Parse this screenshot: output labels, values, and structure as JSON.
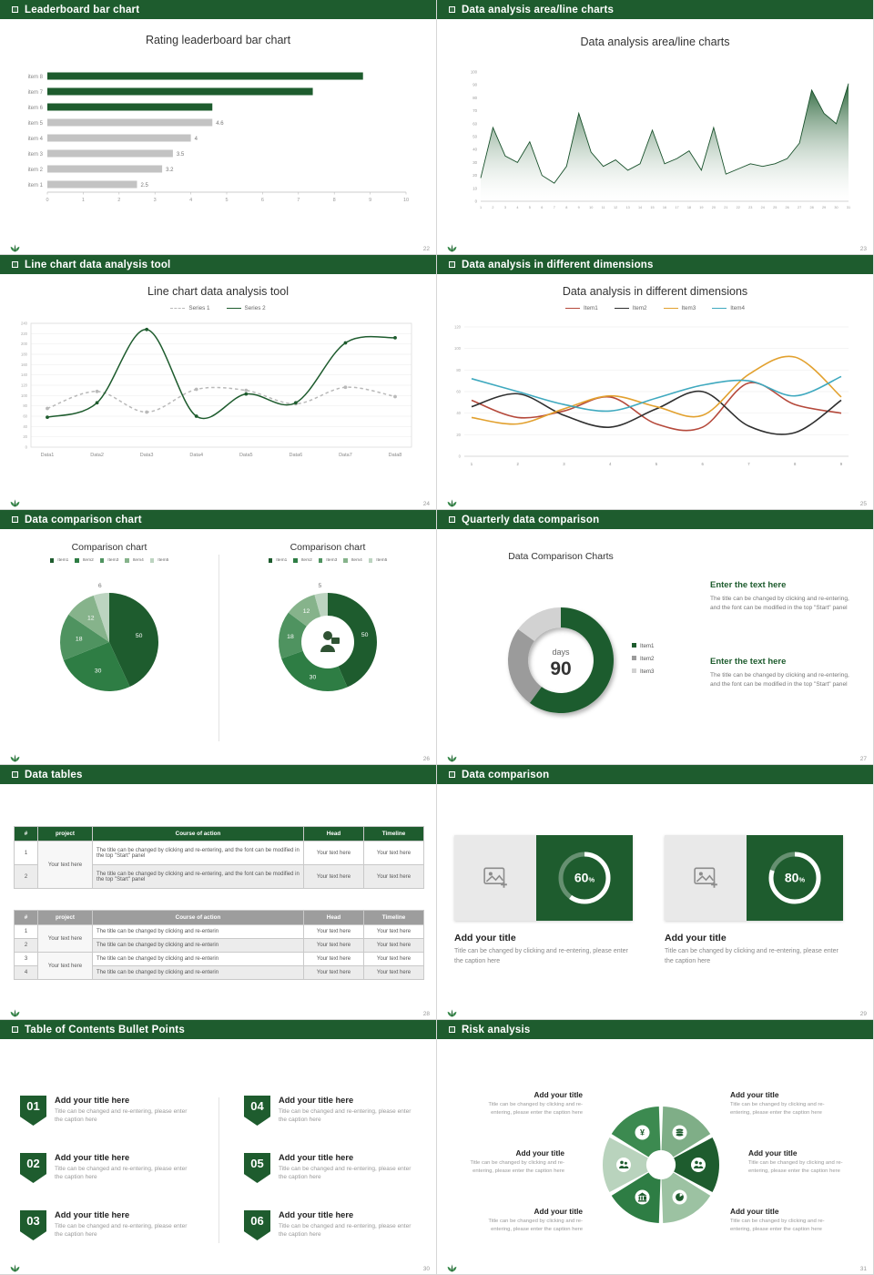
{
  "theme": {
    "green_dark": "#1e5c2e",
    "green_mid": "#2e7d44",
    "gray_bar": "#c3c3c3",
    "header_icon": "square-bullet-icon",
    "footer_icon": "wheat-logo-icon"
  },
  "slides": [
    {
      "header": "Leaderboard bar chart",
      "page": "22",
      "chart_title": "Rating leaderboard bar chart",
      "chart_data": {
        "type": "bar",
        "orientation": "horizontal",
        "categories": [
          "item 8",
          "item 7",
          "item 6",
          "item 5",
          "item 4",
          "item 3",
          "item 2",
          "item 1"
        ],
        "values": [
          8.8,
          7.4,
          4.6,
          4.6,
          4,
          3.5,
          3.2,
          2.5
        ],
        "colors": [
          "#1e5c2e",
          "#1e5c2e",
          "#1e5c2e",
          "#c3c3c3",
          "#c3c3c3",
          "#c3c3c3",
          "#c3c3c3",
          "#c3c3c3"
        ],
        "value_labels": [
          "",
          "",
          "",
          "4.6",
          "4",
          "3.5",
          "3.2",
          "2.5"
        ],
        "xlim": [
          0,
          10
        ],
        "xticks": [
          0,
          1,
          2,
          3,
          4,
          5,
          6,
          7,
          8,
          9,
          10
        ]
      }
    },
    {
      "header": "Data analysis area/line charts",
      "page": "23",
      "chart_title": "Data analysis area/line charts",
      "chart_data": {
        "type": "area",
        "x_labels": [
          "1",
          "2",
          "3",
          "4",
          "5",
          "6",
          "7",
          "8",
          "9",
          "10",
          "11",
          "12",
          "13",
          "14",
          "15",
          "16",
          "17",
          "18",
          "19",
          "20",
          "21",
          "22",
          "23",
          "24",
          "25",
          "26",
          "27",
          "28",
          "29",
          "30",
          "31"
        ],
        "values": [
          18,
          57,
          35,
          30,
          46,
          20,
          14,
          27,
          68,
          38,
          27,
          32,
          24,
          29,
          55,
          29,
          33,
          39,
          24,
          57,
          21,
          25,
          29,
          27,
          29,
          33,
          45,
          86,
          68,
          60,
          91
        ],
        "ylim": [
          0,
          100
        ],
        "yticks": [
          0,
          10,
          20,
          30,
          40,
          50,
          60,
          70,
          80,
          90,
          100
        ],
        "color": "#1e5c2e"
      }
    },
    {
      "header": "Line chart data analysis tool",
      "page": "24",
      "chart_title": "Line chart data analysis tool",
      "chart_data": {
        "type": "line",
        "categories": [
          "Data1",
          "Data2",
          "Data3",
          "Data4",
          "Data5",
          "Data6",
          "Data7",
          "Data8"
        ],
        "series": [
          {
            "name": "Series 1",
            "color": "#b9b9b9",
            "dashed": true,
            "values": [
              75,
              108,
              68,
              112,
              110,
              84,
              116,
              98
            ]
          },
          {
            "name": "Series 2",
            "color": "#1e5c2e",
            "dashed": false,
            "values": [
              58,
              86,
              228,
              60,
              103,
              86,
              202,
              212
            ]
          }
        ],
        "ylim": [
          0,
          240
        ],
        "ytick_step": 20
      }
    },
    {
      "header": "Data analysis in different dimensions",
      "page": "25",
      "chart_title": "Data analysis in different dimensions",
      "chart_data": {
        "type": "line",
        "x_labels": [
          "1",
          "2",
          "3",
          "4",
          "5",
          "6",
          "7",
          "8",
          "9"
        ],
        "series": [
          {
            "name": "Item1",
            "color": "#b5493b",
            "dashed": false,
            "values": [
              52,
              36,
              42,
              55,
              30,
              27,
              68,
              48,
              40
            ]
          },
          {
            "name": "Item2",
            "color": "#2f2f2f",
            "dashed": false,
            "values": [
              46,
              58,
              38,
              27,
              44,
              60,
              28,
              22,
              52
            ]
          },
          {
            "name": "Item3",
            "color": "#e2a12f",
            "dashed": false,
            "values": [
              36,
              30,
              44,
              56,
              46,
              38,
              76,
              92,
              55
            ]
          },
          {
            "name": "Item4",
            "color": "#3fa9bf",
            "dashed": false,
            "values": [
              72,
              60,
              48,
              42,
              54,
              66,
              70,
              56,
              74
            ]
          }
        ],
        "ylim": [
          0,
          120
        ],
        "ytick_step": 20
      }
    },
    {
      "header": "Data comparison chart",
      "page": "26",
      "left": {
        "title": "Comparison chart",
        "legend": [
          "Item1",
          "Item2",
          "Item3",
          "Item4",
          "Item5"
        ],
        "chart_data": {
          "type": "pie",
          "values": [
            50,
            30,
            18,
            12,
            6
          ],
          "labels": [
            "50",
            "30",
            "18",
            "12",
            "6"
          ],
          "colors": [
            "#1e5c2e",
            "#2e7d44",
            "#4f9360",
            "#86b38b",
            "#bcd4c0"
          ]
        }
      },
      "right": {
        "title": "Comparison chart",
        "legend": [
          "Item1",
          "Item2",
          "Item3",
          "Item4",
          "Item5"
        ],
        "center_icon": "presenter-icon",
        "chart_data": {
          "type": "donut",
          "values": [
            50,
            30,
            18,
            12,
            5
          ],
          "labels": [
            "50",
            "30",
            "18",
            "12",
            "5"
          ],
          "colors": [
            "#1e5c2e",
            "#2e7d44",
            "#4f9360",
            "#86b38b",
            "#bcd4c0"
          ]
        }
      }
    },
    {
      "header": "Quarterly data comparison",
      "page": "27",
      "chart_title": "Data Comparison Charts",
      "chart_data": {
        "type": "donut",
        "values": [
          60,
          25,
          15
        ],
        "colors": [
          "#1e5c2e",
          "#9b9b9b",
          "#d2d2d2"
        ],
        "legend": [
          "Item1",
          "Item2",
          "Item3"
        ],
        "center_label": "days",
        "center_value": "90"
      },
      "blocks": [
        {
          "title": "Enter the text here",
          "body": "The title can be changed by clicking and re-entering, and the font can be modified in the top \"Start\" panel"
        },
        {
          "title": "Enter the text here",
          "body": "The title can be changed by clicking and re-entering, and the font can be modified in the top \"Start\" panel"
        }
      ]
    },
    {
      "header": "Data tables",
      "page": "28",
      "table1": {
        "columns": [
          "#",
          "project",
          "Course of action",
          "Head",
          "Timeline"
        ],
        "project_label": "Your text here",
        "rows": [
          {
            "num": "1",
            "course": "The title can be changed by clicking and re-entering, and the font can be modified in the top \"Start\" panel",
            "head": "Your text here",
            "timeline": "Your text here"
          },
          {
            "num": "2",
            "course": "The title can be changed by clicking and re-entering, and the font can be modified in the top \"Start\" panel",
            "head": "Your text here",
            "timeline": "Your text here"
          }
        ]
      },
      "table2": {
        "columns": [
          "#",
          "project",
          "Course of action",
          "Head",
          "Timeline"
        ],
        "project_label_1": "Your text here",
        "project_label_2": "Your text here",
        "rows": [
          {
            "num": "1",
            "course": "The title can be changed by clicking and re-enterin",
            "head": "Your text here",
            "timeline": "Your text here"
          },
          {
            "num": "2",
            "course": "The title can be changed by clicking and re-enterin",
            "head": "Your text here",
            "timeline": "Your text here"
          },
          {
            "num": "3",
            "course": "The title can be changed by clicking and re-enterin",
            "head": "Your text here",
            "timeline": "Your text here"
          },
          {
            "num": "4",
            "course": "The title can be changed by clicking and re-enterin",
            "head": "Your text here",
            "timeline": "Your text here"
          }
        ]
      }
    },
    {
      "header": "Data comparison",
      "page": "29",
      "cards": [
        {
          "percent": "60",
          "icon": "image-placeholder-icon",
          "title": "Add your title",
          "caption": "Title can be changed by clicking and re-entering, please enter the caption here"
        },
        {
          "percent": "80",
          "icon": "image-placeholder-icon",
          "title": "Add your title",
          "caption": "Title can be changed by clicking and re-entering, please enter the caption here"
        }
      ]
    },
    {
      "header": "Table of Contents Bullet Points",
      "page": "30",
      "items": [
        {
          "num": "01",
          "title": "Add your title here",
          "caption": "Title can be changed and re-entering, please enter the caption here"
        },
        {
          "num": "02",
          "title": "Add your title here",
          "caption": "Title can be changed and re-entering, please enter the caption here"
        },
        {
          "num": "03",
          "title": "Add your title here",
          "caption": "Title can be changed and re-entering, please enter the caption here"
        },
        {
          "num": "04",
          "title": "Add your title here",
          "caption": "Title can be changed and re-entering, please enter the caption here"
        },
        {
          "num": "05",
          "title": "Add your title here",
          "caption": "Title can be changed and re-entering, please enter the caption here"
        },
        {
          "num": "06",
          "title": "Add your title here",
          "caption": "Title can be changed and re-entering, please enter the caption here"
        }
      ]
    },
    {
      "header": "Risk analysis",
      "page": "31",
      "icons": [
        "coins-icon",
        "people-icon",
        "pie-chart-icon",
        "bank-icon",
        "team-icon",
        "money-bag-icon"
      ],
      "blocks": [
        {
          "title": "Add your title",
          "caption": "Title can be changed by clicking and re-entering, please enter the caption here"
        },
        {
          "title": "Add your title",
          "caption": "Title can be changed by clicking and re-entering, please enter the caption here"
        },
        {
          "title": "Add your title",
          "caption": "Title can be changed by clicking and re-entering, please enter the caption here"
        },
        {
          "title": "Add your title",
          "caption": "Title can be changed by clicking and re-entering, please enter the caption here"
        },
        {
          "title": "Add your title",
          "caption": "Title can be changed by clicking and re-entering, please enter the caption here"
        },
        {
          "title": "Add your title",
          "caption": "Title can be changed by clicking and re-entering, please enter the caption here"
        }
      ]
    }
  ]
}
